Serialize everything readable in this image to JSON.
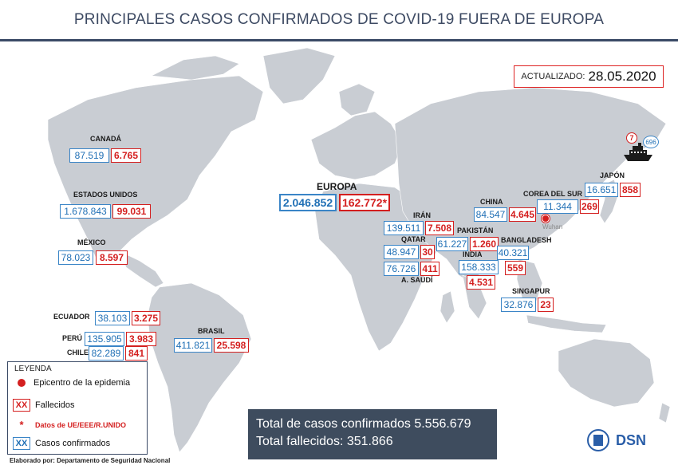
{
  "title": "PRINCIPALES CASOS CONFIRMADOS DE COVID-19 FUERA DE EUROPA",
  "updated": {
    "label": "ACTUALIZADO:",
    "date": "28.05.2020"
  },
  "regions": [
    {
      "id": "canada",
      "name": "CANADÁ",
      "confirmed": "87.519",
      "deaths": "6.765"
    },
    {
      "id": "usa",
      "name": "ESTADOS UNIDOS",
      "confirmed": "1.678.843",
      "deaths": "99.031"
    },
    {
      "id": "mexico",
      "name": "MÉXICO",
      "confirmed": "78.023",
      "deaths": "8.597"
    },
    {
      "id": "ecuador",
      "name": "ECUADOR",
      "confirmed": "38.103",
      "deaths": "3.275"
    },
    {
      "id": "peru",
      "name": "PERÚ",
      "confirmed": "135.905",
      "deaths": "3.983"
    },
    {
      "id": "chile",
      "name": "CHILE",
      "confirmed": "82.289",
      "deaths": "841"
    },
    {
      "id": "brasil",
      "name": "BRASIL",
      "confirmed": "411.821",
      "deaths": "25.598"
    },
    {
      "id": "europa",
      "name": "EUROPA",
      "confirmed": "2.046.852",
      "deaths": "162.772*"
    },
    {
      "id": "iran",
      "name": "IRÁN",
      "confirmed": "139.511",
      "deaths": "7.508"
    },
    {
      "id": "qatar",
      "name": "QATAR",
      "confirmed": "48.947",
      "deaths": "30"
    },
    {
      "id": "arabia",
      "name": "A. SAUDÍ",
      "confirmed": "76.726",
      "deaths": "411"
    },
    {
      "id": "pakistan",
      "name": "PAKISTÁN",
      "confirmed": "61.227",
      "deaths": "1.260"
    },
    {
      "id": "india",
      "name": "INDIA",
      "confirmed": "158.333",
      "deaths": "4.531"
    },
    {
      "id": "china",
      "name": "CHINA",
      "confirmed": "84.547",
      "deaths": "4.645"
    },
    {
      "id": "bangladesh",
      "name": "BANGLADESH",
      "confirmed": "40.321",
      "deaths": "559"
    },
    {
      "id": "corea",
      "name": "COREA DEL SUR",
      "confirmed": "11.344",
      "deaths": "269"
    },
    {
      "id": "japon",
      "name": "JAPÓN",
      "confirmed": "16.651",
      "deaths": "858"
    },
    {
      "id": "singapur",
      "name": "SINGAPUR",
      "confirmed": "32.876",
      "deaths": "23"
    }
  ],
  "wuhan": "Wuhan",
  "ship": {
    "deaths": "7",
    "confirmed": "696"
  },
  "legend": {
    "title": "LEYENDA",
    "epicenter": "Epicentro de la epidemia",
    "deaths_symbol": "XX",
    "deaths": "Fallecidos",
    "star_symbol": "*",
    "eu_data": "Datos de UE/EEE/R.UNIDO",
    "confirmed_symbol": "XX",
    "confirmed": "Casos confirmados"
  },
  "totals": {
    "confirmed": "Total de casos confirmados 5.556.679",
    "deaths": "Total fallecidos: 351.866"
  },
  "footer": "Elaborado por: Departamento de Seguridad Nacional",
  "logo_text": "DSN",
  "colors": {
    "confirmed": "#1f6fb5",
    "deaths": "#d41f1f",
    "land": "#c9cdd3",
    "header": "#3d4a63"
  }
}
